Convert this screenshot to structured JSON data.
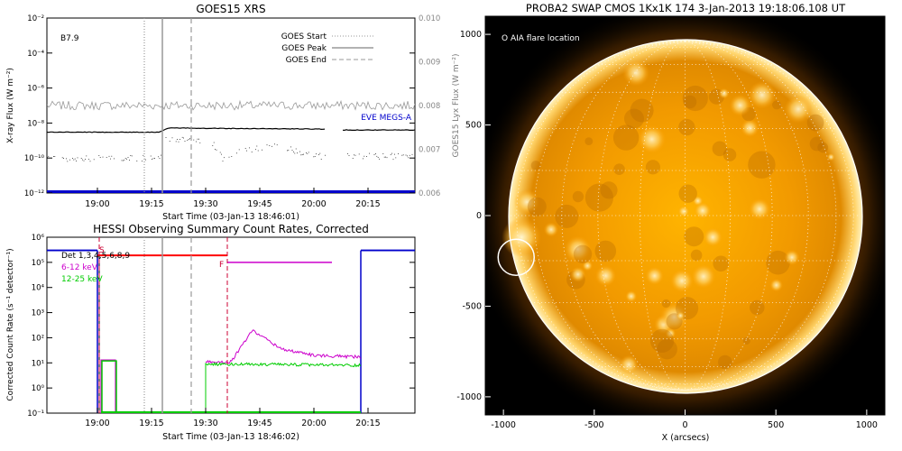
{
  "colors": {
    "goes_long": "#000000",
    "goes_short": "#000000",
    "goes_lyx": "#999999",
    "eve_megs": "#0000cc",
    "hessi_det": "#000000",
    "hessi_6_12": "#cc00cc",
    "hessi_12_25": "#00cc00",
    "hessi_red": "#ff0000",
    "hessi_blue": "#0000cc",
    "attenuator_line": "#cc0033",
    "sun_dark": "#000000",
    "sun_core": "#ffa000",
    "sun_limb": "#ffffff"
  },
  "chart_data": [
    {
      "type": "line",
      "title": "GOES15 XRS",
      "xlabel": "Start Time (03-Jan-13 18:46:01)",
      "ylabel": "X-ray Flux (W m⁻²)",
      "y2label": "GOES15 Lyx Flux (W m⁻²)",
      "x_unit": "minutes since 18:46:01 (axis labelled in clock time)",
      "xlim": [
        "18:46",
        "20:28"
      ],
      "ylim": [
        1e-12,
        0.01
      ],
      "y_scale": "log",
      "y2lim": [
        0.006,
        0.01
      ],
      "x_tick_labels": [
        "19:00",
        "19:15",
        "19:30",
        "19:45",
        "20:00",
        "20:15"
      ],
      "y_tick_labels": [
        "10⁻¹²",
        "10⁻¹⁰",
        "10⁻⁸",
        "10⁻⁶",
        "10⁻⁴",
        "10⁻²"
      ],
      "y2_tick_labels": [
        "0.006",
        "0.007",
        "0.008",
        "0.009",
        "0.010"
      ],
      "class_label": "B7.9",
      "legend": [
        "GOES Start",
        "GOES Peak",
        "GOES End"
      ],
      "annotation": "EVE MEGS-A",
      "events": [
        {
          "name": "GOES Start",
          "time": "19:13",
          "style": "dotted"
        },
        {
          "name": "GOES Peak",
          "time": "19:18",
          "style": "solid"
        },
        {
          "name": "GOES End",
          "time": "19:26",
          "style": "dashed"
        }
      ],
      "series": [
        {
          "name": "long",
          "times": [
            "18:46",
            "19:17",
            "19:20",
            "20:03"
          ],
          "values": [
            3e-09,
            3e-09,
            5.2e-09,
            4.5e-09
          ],
          "gap": [
            "20:03",
            "20:08"
          ],
          "after_gap": 4e-09
        },
        {
          "name": "short",
          "times": [
            "18:46",
            "19:17",
            "19:19",
            "19:32",
            "19:35",
            "19:40",
            "19:50",
            "20:01"
          ],
          "values": [
            1e-10,
            1e-10,
            1.4e-09,
            7e-10,
            8e-11,
            3e-10,
            5e-10,
            1.3e-10
          ]
        },
        {
          "name": "lyx",
          "values_range": [
            0.0079,
            0.0081
          ]
        },
        {
          "name": "EVE MEGS-A",
          "values": 1e-12
        }
      ]
    },
    {
      "type": "line",
      "title": "HESSI Observing Summary Count Rates, Corrected",
      "xlabel": "Start Time (03-Jan-13 18:46:02)",
      "ylabel": "Corrected Count Rate (s⁻¹ detector⁻¹)",
      "x_unit": "minutes since 18:46:02 (axis labelled in clock time)",
      "xlim": [
        "18:46",
        "20:28"
      ],
      "ylim": [
        0.1,
        1000000.0
      ],
      "y_scale": "log",
      "x_tick_labels": [
        "19:00",
        "19:15",
        "19:30",
        "19:45",
        "20:00",
        "20:15"
      ],
      "y_tick_labels": [
        "10⁻¹",
        "10⁰",
        "10¹",
        "10²",
        "10³",
        "10⁴",
        "10⁵",
        "10⁶"
      ],
      "legend": [
        "Det 1,3,4,5,6,8,9",
        "6-12 keV",
        "12-25 keV"
      ],
      "marker_labels": [
        "S",
        "F"
      ],
      "events": [
        {
          "name": "GOES Start",
          "time": "19:13",
          "style": "dotted"
        },
        {
          "name": "GOES Peak",
          "time": "19:18",
          "style": "solid"
        },
        {
          "name": "GOES End",
          "time": "19:26",
          "style": "dashed"
        }
      ],
      "series": [
        {
          "name": "blue flags",
          "segments": [
            [
              "18:46",
              "19:00",
              300000.0
            ],
            [
              "20:13",
              "20:28",
              300000.0
            ]
          ]
        },
        {
          "name": "red",
          "segments": [
            [
              "19:00",
              "19:36",
              190000.0
            ]
          ]
        },
        {
          "name": "6-12 keV",
          "times": [
            "19:36",
            "20:05"
          ],
          "values": [
            100000.0,
            100000.0
          ],
          "flare_times": [
            "19:30",
            "19:37",
            "19:43",
            "19:51",
            "20:00",
            "20:13"
          ],
          "flare_values": [
            11,
            11,
            200,
            35,
            20,
            17
          ]
        },
        {
          "name": "12-25 keV",
          "times": [
            "19:01",
            "19:05",
            "19:30",
            "20:13"
          ],
          "values": [
            12,
            12,
            9,
            8
          ]
        }
      ]
    }
  ],
  "swap_panel": {
    "title": "PROBA2 SWAP CMOS 1Kx1K 174   3-Jan-2013 19:18:06.108 UT",
    "legend": "O AIA flare location",
    "xlabel": "X (arcsecs)",
    "xlim": [
      -1100,
      1100
    ],
    "ylim": [
      -1100,
      1100
    ],
    "x_tick_labels": [
      "-1000",
      "-500",
      "0",
      "500",
      "1000"
    ],
    "y_tick_labels": [
      "-1000",
      "-500",
      "0",
      "500",
      "1000"
    ],
    "flare_location": {
      "x": -930,
      "y": -230
    },
    "solar_radius_arcsec": 960
  }
}
